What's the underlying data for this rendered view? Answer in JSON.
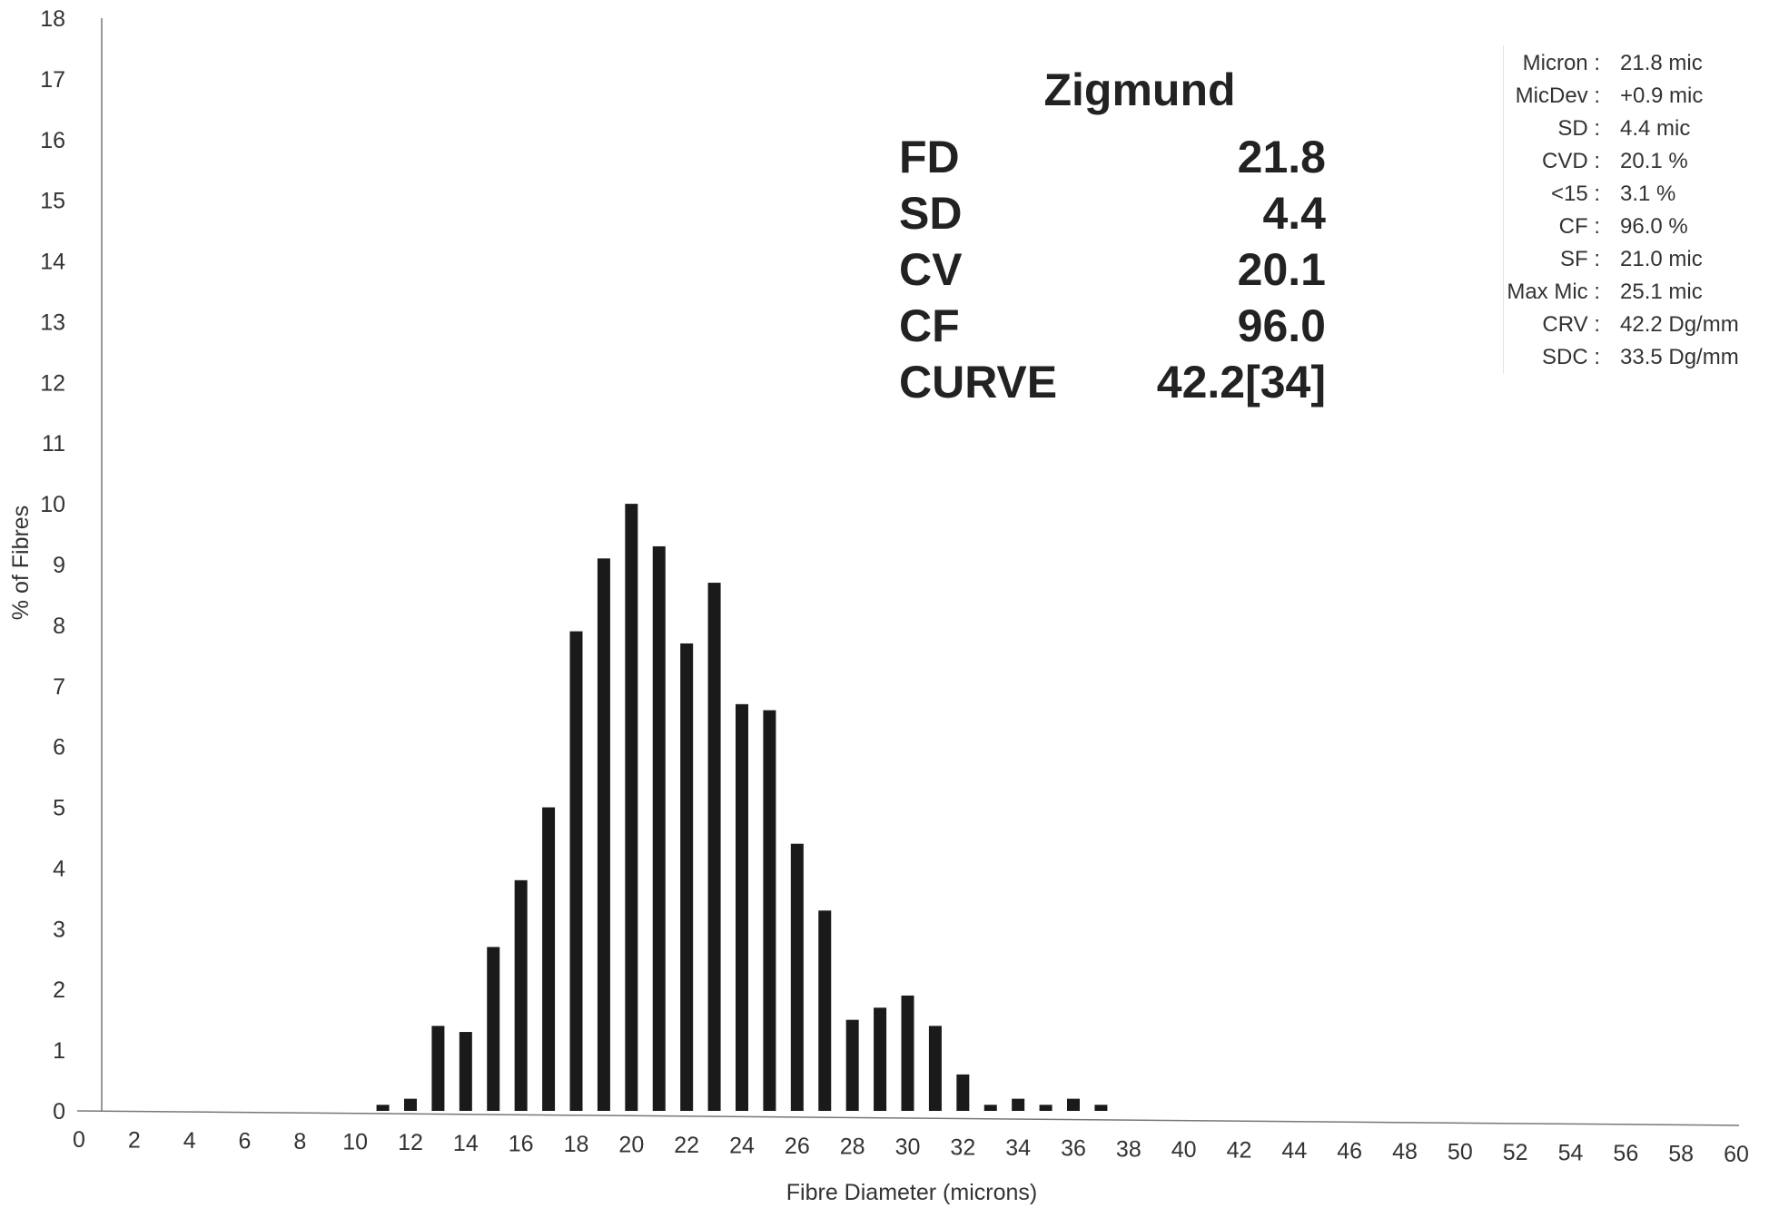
{
  "chart_data": {
    "type": "bar",
    "xlabel": "Fibre Diameter (microns)",
    "ylabel": "% of Fibres",
    "xlim": [
      0,
      60
    ],
    "ylim": [
      0,
      18
    ],
    "x_ticks": [
      "0",
      "2",
      "4",
      "6",
      "8",
      "10",
      "12",
      "14",
      "16",
      "18",
      "20",
      "22",
      "24",
      "26",
      "28",
      "30",
      "32",
      "34",
      "36",
      "38",
      "40",
      "42",
      "44",
      "46",
      "48",
      "50",
      "52",
      "54",
      "56",
      "58",
      "60"
    ],
    "y_ticks": [
      "0",
      "1",
      "2",
      "3",
      "4",
      "5",
      "6",
      "7",
      "8",
      "9",
      "10",
      "11",
      "12",
      "13",
      "14",
      "15",
      "16",
      "17",
      "18"
    ],
    "x": [
      11,
      12,
      13,
      14,
      15,
      16,
      17,
      18,
      19,
      20,
      21,
      22,
      23,
      24,
      25,
      26,
      27,
      28,
      29,
      30,
      31,
      32,
      33,
      34,
      35,
      36,
      37
    ],
    "values": [
      0.1,
      0.2,
      1.4,
      1.3,
      2.7,
      3.8,
      5.0,
      7.9,
      9.1,
      10.0,
      9.3,
      7.7,
      8.7,
      6.7,
      6.6,
      4.4,
      3.3,
      1.5,
      1.7,
      1.9,
      1.4,
      0.6,
      0.1,
      0.2,
      0.1,
      0.2,
      0.1
    ],
    "bar_color": "#1a1a1a",
    "grid": false
  },
  "summary": {
    "title": "Zigmund",
    "rows": [
      {
        "label": "FD",
        "value": "21.8"
      },
      {
        "label": "SD",
        "value": "4.4"
      },
      {
        "label": "CV",
        "value": "20.1"
      },
      {
        "label": "CF",
        "value": "96.0"
      },
      {
        "label": "CURVE",
        "value": "42.2[34]"
      }
    ]
  },
  "stats": [
    {
      "label": "Micron :",
      "value": "21.8 mic"
    },
    {
      "label": "MicDev :",
      "value": "+0.9 mic"
    },
    {
      "label": "SD :",
      "value": "4.4 mic"
    },
    {
      "label": "CVD :",
      "value": "20.1 %"
    },
    {
      "label": "<15 :",
      "value": "3.1 %"
    },
    {
      "label": "CF :",
      "value": "96.0 %"
    },
    {
      "label": "SF :",
      "value": "21.0 mic"
    },
    {
      "label": "Max Mic :",
      "value": "25.1 mic"
    },
    {
      "label": "CRV :",
      "value": "42.2 Dg/mm"
    },
    {
      "label": "SDC :",
      "value": "33.5 Dg/mm"
    }
  ]
}
